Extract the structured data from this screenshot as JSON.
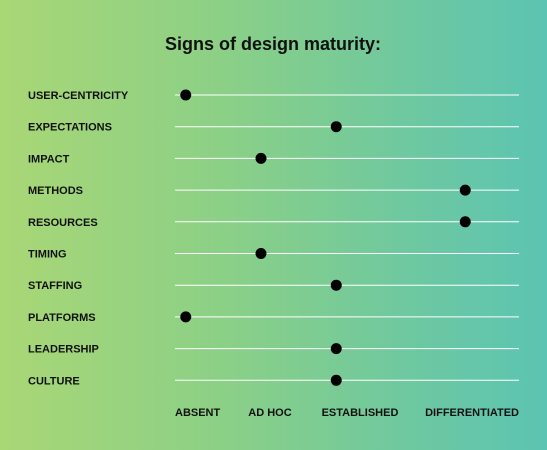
{
  "chart_data": {
    "type": "scatter",
    "title": "Signs of design maturity:",
    "categories": [
      "USER-CENTRICITY",
      "EXPECTATIONS",
      "IMPACT",
      "METHODS",
      "RESOURCES",
      "TIMING",
      "STAFFING",
      "PLATFORMS",
      "LEADERSHIP",
      "CULTURE"
    ],
    "levels": [
      "ABSENT",
      "AD HOC",
      "ESTABLISHED",
      "DIFFERENTIATED"
    ],
    "values": [
      0.1,
      1.5,
      0.8,
      2.7,
      2.7,
      0.8,
      1.5,
      0.1,
      1.5,
      1.5
    ],
    "xlim": [
      0,
      3.2
    ],
    "colors": {
      "dot": "#000000",
      "line": "#ffffff",
      "gradient_start": "#a9d776",
      "gradient_end": "#5cc4b2"
    }
  }
}
